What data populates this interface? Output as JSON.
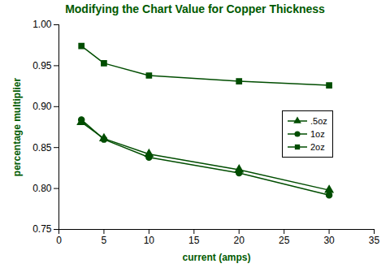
{
  "chart_data": {
    "type": "line",
    "title": "Modifying the Chart Value for Copper Thickness",
    "x_label": "current (amps)",
    "y_label": "percentage multiplier",
    "x": [
      2.5,
      5,
      10,
      20,
      30
    ],
    "series": [
      {
        "name": ".5oz",
        "color": "#004d00",
        "marker": "triangle",
        "values": [
          0.881,
          0.861,
          0.842,
          0.823,
          0.798
        ]
      },
      {
        "name": "1oz",
        "color": "#004d00",
        "marker": "circle",
        "values": [
          0.884,
          0.86,
          0.838,
          0.819,
          0.792
        ]
      },
      {
        "name": "2oz",
        "color": "#004d00",
        "marker": "square",
        "values": [
          0.974,
          0.953,
          0.938,
          0.931,
          0.926
        ]
      }
    ],
    "xlim": [
      0,
      35
    ],
    "xticks": [
      0,
      5,
      10,
      15,
      20,
      25,
      30,
      35
    ],
    "ylim": [
      0.75,
      1.0
    ],
    "yticks": [
      0.75,
      {
        "value": 0.8,
        "label": "0.80"
      },
      0.85,
      {
        "value": 0.9,
        "label": "0.90"
      },
      0.95,
      {
        "value": 1.0,
        "label": "1.00"
      }
    ],
    "legend": "right"
  }
}
